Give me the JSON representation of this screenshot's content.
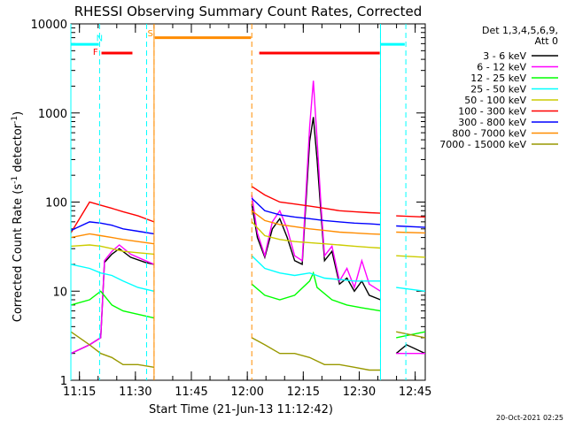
{
  "chart_data": {
    "type": "line",
    "title": "RHESSI Observing Summary Count Rates, Corrected",
    "xlabel": "Start Time (21-Jun-13 11:12:42)",
    "ylabel": "Corrected Count Rate (s⁻¹ detector⁻¹)",
    "ylabel_main": "Corrected Count Rate (s",
    "ylabel_sup1": "-1",
    "ylabel_mid": " detector",
    "ylabel_sup2": "-1",
    "ylabel_end": ")",
    "y_scale": "log",
    "ylim": [
      1,
      10000
    ],
    "x_range_min": [
      0,
      95
    ],
    "x_ticks": [
      {
        "t": 2.3,
        "label": "11:15"
      },
      {
        "t": 17.3,
        "label": "11:30"
      },
      {
        "t": 32.3,
        "label": "11:45"
      },
      {
        "t": 47.3,
        "label": "12:00"
      },
      {
        "t": 62.3,
        "label": "12:15"
      },
      {
        "t": 77.3,
        "label": "12:30"
      },
      {
        "t": 92.3,
        "label": "12:45"
      }
    ],
    "y_ticks": [
      {
        "v": 1,
        "label": "1"
      },
      {
        "v": 10,
        "label": "10"
      },
      {
        "v": 100,
        "label": "100"
      },
      {
        "v": 1000,
        "label": "1000"
      },
      {
        "v": 10000,
        "label": "10000"
      }
    ],
    "legend_header": [
      "Det 1,3,4,5,6,9,",
      "Att 0"
    ],
    "legend_position": "right",
    "footer_date": "20-Oct-2021 02:25",
    "gaps_min": [
      [
        22.3,
        48.5
      ],
      [
        83.0,
        87.2
      ]
    ],
    "series": [
      {
        "name": "3 - 6 keV",
        "color": "#000000",
        "points": [
          [
            0,
            2
          ],
          [
            5,
            2.5
          ],
          [
            8,
            3
          ],
          [
            9,
            21
          ],
          [
            11,
            26
          ],
          [
            13,
            30
          ],
          [
            16,
            24
          ],
          [
            20,
            21
          ],
          [
            22.3,
            20
          ],
          [
            48.5,
            95
          ],
          [
            50,
            40
          ],
          [
            52,
            24
          ],
          [
            54,
            50
          ],
          [
            56,
            65
          ],
          [
            58,
            40
          ],
          [
            60,
            22
          ],
          [
            62,
            20
          ],
          [
            64,
            480
          ],
          [
            65,
            900
          ],
          [
            66,
            300
          ],
          [
            67,
            80
          ],
          [
            68,
            22
          ],
          [
            70,
            28
          ],
          [
            72,
            12
          ],
          [
            74,
            14
          ],
          [
            76,
            10
          ],
          [
            78,
            13
          ],
          [
            80,
            9
          ],
          [
            83,
            8
          ],
          [
            87.2,
            2
          ],
          [
            90,
            2.5
          ],
          [
            95,
            2
          ]
        ]
      },
      {
        "name": "6 - 12 keV",
        "color": "#ff00ff",
        "points": [
          [
            0,
            2
          ],
          [
            5,
            2.5
          ],
          [
            8,
            3
          ],
          [
            9,
            22
          ],
          [
            11,
            28
          ],
          [
            13,
            33
          ],
          [
            16,
            26
          ],
          [
            20,
            22
          ],
          [
            22.3,
            20
          ],
          [
            48.5,
            120
          ],
          [
            50,
            45
          ],
          [
            52,
            25
          ],
          [
            54,
            60
          ],
          [
            56,
            80
          ],
          [
            58,
            50
          ],
          [
            60,
            25
          ],
          [
            62,
            22
          ],
          [
            64,
            700
          ],
          [
            65,
            2300
          ],
          [
            66,
            500
          ],
          [
            67,
            100
          ],
          [
            68,
            25
          ],
          [
            70,
            32
          ],
          [
            72,
            13
          ],
          [
            74,
            18
          ],
          [
            76,
            11
          ],
          [
            78,
            22
          ],
          [
            80,
            12
          ],
          [
            83,
            10
          ],
          [
            87.2,
            2
          ],
          [
            95,
            2
          ]
        ]
      },
      {
        "name": "12 - 25 keV",
        "color": "#00ff00",
        "points": [
          [
            0,
            7
          ],
          [
            5,
            8
          ],
          [
            8,
            10
          ],
          [
            11,
            7
          ],
          [
            14,
            6
          ],
          [
            18,
            5.5
          ],
          [
            22.3,
            5
          ],
          [
            48.5,
            12
          ],
          [
            52,
            9
          ],
          [
            56,
            8
          ],
          [
            60,
            9
          ],
          [
            64,
            13
          ],
          [
            65,
            16
          ],
          [
            66,
            11
          ],
          [
            70,
            8
          ],
          [
            74,
            7
          ],
          [
            78,
            6.5
          ],
          [
            83,
            6
          ],
          [
            87.2,
            3
          ],
          [
            95,
            3.5
          ]
        ]
      },
      {
        "name": "25 - 50 keV",
        "color": "#00ffff",
        "points": [
          [
            0,
            20
          ],
          [
            5,
            18
          ],
          [
            8,
            16
          ],
          [
            11,
            15
          ],
          [
            14,
            13
          ],
          [
            18,
            11
          ],
          [
            22.3,
            10
          ],
          [
            48.5,
            25
          ],
          [
            52,
            18
          ],
          [
            56,
            16
          ],
          [
            60,
            15
          ],
          [
            64,
            16
          ],
          [
            68,
            14
          ],
          [
            72,
            13.5
          ],
          [
            76,
            13
          ],
          [
            80,
            13
          ],
          [
            83,
            13
          ],
          [
            87.2,
            11
          ],
          [
            95,
            10
          ]
        ]
      },
      {
        "name": "50 - 100 keV",
        "color": "#cccc00",
        "points": [
          [
            0,
            32
          ],
          [
            5,
            33
          ],
          [
            8,
            32
          ],
          [
            11,
            30
          ],
          [
            14,
            28
          ],
          [
            18,
            27
          ],
          [
            22.3,
            26
          ],
          [
            48.5,
            60
          ],
          [
            52,
            42
          ],
          [
            56,
            38
          ],
          [
            60,
            36
          ],
          [
            64,
            35
          ],
          [
            68,
            34
          ],
          [
            72,
            33
          ],
          [
            76,
            32
          ],
          [
            80,
            31
          ],
          [
            83,
            30.5
          ],
          [
            87.2,
            25
          ],
          [
            95,
            24
          ]
        ]
      },
      {
        "name": "100 - 300 keV",
        "color": "#ff0000",
        "points": [
          [
            0,
            45
          ],
          [
            5,
            100
          ],
          [
            8,
            92
          ],
          [
            11,
            85
          ],
          [
            14,
            78
          ],
          [
            18,
            70
          ],
          [
            22.3,
            60
          ],
          [
            48.5,
            150
          ],
          [
            52,
            120
          ],
          [
            56,
            100
          ],
          [
            60,
            95
          ],
          [
            64,
            90
          ],
          [
            68,
            85
          ],
          [
            72,
            80
          ],
          [
            76,
            78
          ],
          [
            80,
            76
          ],
          [
            83,
            75
          ],
          [
            87.2,
            70
          ],
          [
            95,
            68
          ]
        ]
      },
      {
        "name": "300 - 800 keV",
        "color": "#0000ff",
        "points": [
          [
            0,
            48
          ],
          [
            5,
            60
          ],
          [
            8,
            58
          ],
          [
            11,
            55
          ],
          [
            14,
            50
          ],
          [
            18,
            47
          ],
          [
            22.3,
            44
          ],
          [
            48.5,
            110
          ],
          [
            52,
            80
          ],
          [
            56,
            72
          ],
          [
            60,
            68
          ],
          [
            64,
            65
          ],
          [
            68,
            62
          ],
          [
            72,
            60
          ],
          [
            76,
            58
          ],
          [
            80,
            57
          ],
          [
            83,
            56
          ],
          [
            87.2,
            54
          ],
          [
            95,
            52
          ]
        ]
      },
      {
        "name": "800 - 7000 keV",
        "color": "#ff8c00",
        "points": [
          [
            0,
            40
          ],
          [
            5,
            44
          ],
          [
            8,
            42
          ],
          [
            11,
            40
          ],
          [
            14,
            38
          ],
          [
            18,
            36
          ],
          [
            22.3,
            34
          ],
          [
            48.5,
            80
          ],
          [
            52,
            62
          ],
          [
            56,
            56
          ],
          [
            60,
            53
          ],
          [
            64,
            50
          ],
          [
            68,
            48
          ],
          [
            72,
            46
          ],
          [
            76,
            45
          ],
          [
            80,
            44
          ],
          [
            83,
            43.5
          ],
          [
            87.2,
            46
          ],
          [
            95,
            45
          ]
        ]
      },
      {
        "name": "7000 - 15000 keV",
        "color": "#999900",
        "points": [
          [
            0,
            3.5
          ],
          [
            5,
            2.5
          ],
          [
            8,
            2
          ],
          [
            11,
            1.8
          ],
          [
            14,
            1.5
          ],
          [
            18,
            1.5
          ],
          [
            22.3,
            1.4
          ],
          [
            48.5,
            3
          ],
          [
            52,
            2.5
          ],
          [
            56,
            2
          ],
          [
            60,
            2
          ],
          [
            64,
            1.8
          ],
          [
            68,
            1.5
          ],
          [
            72,
            1.5
          ],
          [
            76,
            1.4
          ],
          [
            80,
            1.3
          ],
          [
            83,
            1.3
          ],
          [
            87.2,
            3.5
          ],
          [
            95,
            3
          ]
        ]
      }
    ],
    "flags": [
      {
        "label": "N",
        "color": "#00ffff",
        "label_t": 7.7,
        "label_v": 7000,
        "dashes": [
          7.7,
          20.3,
          83.0,
          89.8
        ]
      },
      {
        "label": "F",
        "color": "#ff0000",
        "label_t": 6.6,
        "label_v": 4900
      },
      {
        "label": "S",
        "color": "#ff8c00",
        "label_t": 21.3,
        "label_v": 8000,
        "dashes": [
          22.3,
          48.5
        ]
      }
    ],
    "flag_bars": [
      {
        "color": "#00ffff",
        "t0": 0,
        "t1": 7.5,
        "v": 5900
      },
      {
        "color": "#00ffff",
        "t0": 83.0,
        "t1": 89.5,
        "v": 5900
      },
      {
        "color": "#ff0000",
        "t0": 8.2,
        "t1": 16.5,
        "v": 4700
      },
      {
        "color": "#ff0000",
        "t0": 50.5,
        "t1": 82.8,
        "v": 4700
      },
      {
        "color": "#ff8c00",
        "t0": 22.5,
        "t1": 48.3,
        "v": 7000
      }
    ]
  }
}
